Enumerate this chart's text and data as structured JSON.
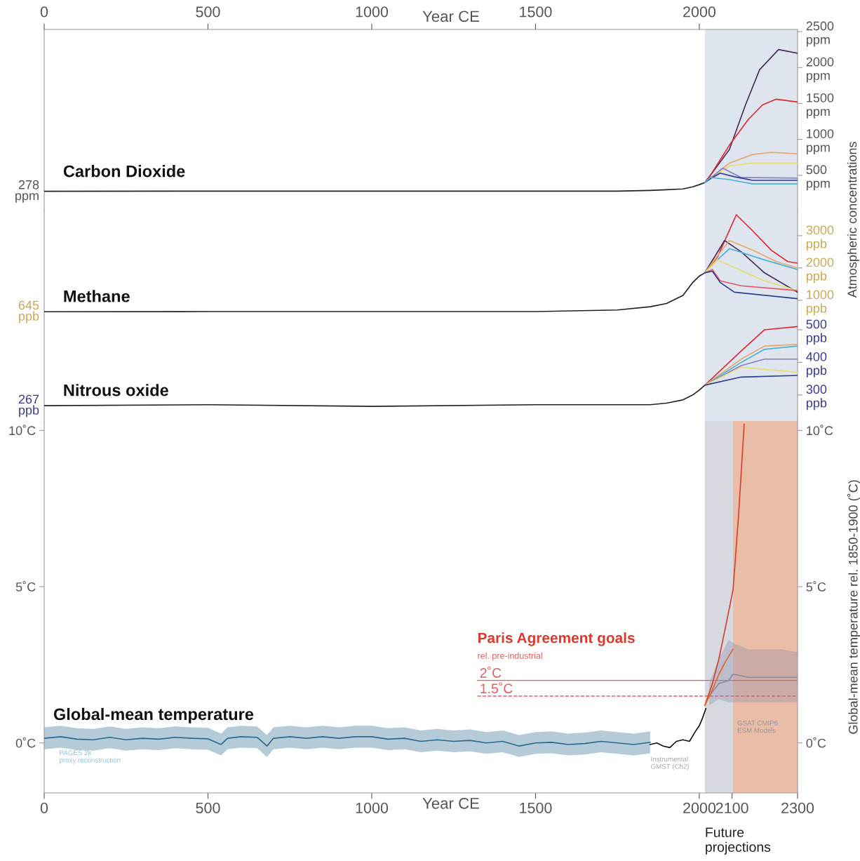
{
  "chart_data": [
    {
      "type": "line",
      "title": "Carbon Dioxide",
      "xlim": [
        0,
        2300
      ],
      "x2lim": [
        0,
        2300
      ],
      "x2ticks": [
        0,
        500,
        1000,
        1500,
        2000
      ],
      "x2label": "Year CE",
      "tick_labels": "y",
      "y2lim": [
        10,
        2530
      ],
      "y2label": "Atmospheric concentrations",
      "y2ticks": [
        {
          "value": 500,
          "label": "500\nppm"
        },
        {
          "value": 1000,
          "label": "1000\nppm"
        },
        {
          "value": 1500,
          "label": "1500\nppm"
        },
        {
          "value": 2000,
          "label": "2000\nppm"
        },
        {
          "value": 2500,
          "label": "2500\nppm"
        }
      ],
      "annotations": [
        "278\nppm"
      ],
      "bands": [
        {
          "axis": "x",
          "from": 2017,
          "to": 2300,
          "color": "#dfe5ef"
        }
      ],
      "series": [
        {
          "axis": "y2",
          "color": "#222222",
          "x": [
            0,
            500,
            1000,
            1500,
            1750,
            1850,
            1900,
            1950,
            1980,
            2000,
            2017
          ],
          "values": [
            278,
            280,
            280,
            280,
            280,
            290,
            300,
            310,
            340,
            370,
            400
          ]
        },
        {
          "axis": "y2",
          "color": "#4a2f5b",
          "x": [
            2017,
            2034,
            2092,
            2141,
            2184,
            2242,
            2300
          ],
          "values": [
            400,
            500,
            860,
            1480,
            1970,
            2250,
            2200
          ]
        },
        {
          "axis": "y2",
          "color": "#e0282e",
          "x": [
            2017,
            2034,
            2092,
            2150,
            2193,
            2235,
            2300
          ],
          "values": [
            400,
            500,
            920,
            1280,
            1480,
            1560,
            1520
          ]
        },
        {
          "axis": "y2",
          "color": "#e8a870",
          "x": [
            2017,
            2050,
            2092,
            2163,
            2220,
            2300
          ],
          "values": [
            400,
            520,
            670,
            790,
            820,
            800
          ]
        },
        {
          "axis": "y2",
          "color": "#e5de72",
          "x": [
            2017,
            2050,
            2092,
            2163,
            2300
          ],
          "values": [
            400,
            510,
            630,
            670,
            670
          ]
        },
        {
          "axis": "y2",
          "color": "#8a7fc4",
          "x": [
            2017,
            2040,
            2071,
            2128,
            2300
          ],
          "values": [
            400,
            480,
            600,
            470,
            460
          ]
        },
        {
          "axis": "y2",
          "color": "#2c3e8c",
          "x": [
            2017,
            2040,
            2064,
            2107,
            2163,
            2300
          ],
          "values": [
            400,
            470,
            530,
            480,
            430,
            430
          ]
        },
        {
          "axis": "y2",
          "color": "#4ab3d6",
          "x": [
            2017,
            2034,
            2092,
            2163,
            2300
          ],
          "values": [
            400,
            470,
            440,
            380,
            380
          ]
        }
      ]
    },
    {
      "type": "line",
      "title": "Methane",
      "xlim": [
        0,
        2300
      ],
      "tick_labels": "y",
      "y2lim": [
        520,
        3780
      ],
      "y2ticks": [
        {
          "value": 1000,
          "label": "1000\nppb"
        },
        {
          "value": 2000,
          "label": "2000\nppb"
        },
        {
          "value": 3000,
          "label": "3000\nppb"
        }
      ],
      "annotations": [
        "645\nppb"
      ],
      "bands": [
        {
          "axis": "x",
          "from": 2017,
          "to": 2300,
          "color": "#dfe5ef"
        }
      ],
      "series": [
        {
          "axis": "y2",
          "color": "#222222",
          "x": [
            0,
            500,
            1000,
            1500,
            1750,
            1850,
            1900,
            1950,
            1980,
            2000,
            2017
          ],
          "values": [
            645,
            650,
            650,
            650,
            700,
            800,
            900,
            1150,
            1550,
            1750,
            1850
          ]
        },
        {
          "axis": "y2",
          "color": "#e0282e",
          "x": [
            2017,
            2056,
            2113,
            2163,
            2220,
            2270,
            2300
          ],
          "values": [
            1850,
            2350,
            3650,
            3150,
            2550,
            2200,
            2150
          ]
        },
        {
          "axis": "y2",
          "color": "#4a2f5b",
          "x": [
            2017,
            2050,
            2077,
            2128,
            2199,
            2300
          ],
          "values": [
            1850,
            2400,
            2850,
            2500,
            1850,
            1250
          ]
        },
        {
          "axis": "y2",
          "color": "#e8a870",
          "x": [
            2017,
            2050,
            2092,
            2163,
            2235,
            2300
          ],
          "values": [
            1850,
            2300,
            2850,
            2550,
            2200,
            2000
          ]
        },
        {
          "axis": "y2",
          "color": "#4ab3d6",
          "x": [
            2017,
            2050,
            2092,
            2199,
            2300
          ],
          "values": [
            1850,
            2200,
            2600,
            2250,
            1950
          ]
        },
        {
          "axis": "y2",
          "color": "#e5de72",
          "x": [
            2017,
            2056,
            2199,
            2300
          ],
          "values": [
            1850,
            2250,
            1600,
            1300
          ]
        },
        {
          "axis": "y2",
          "color": "#e05560",
          "x": [
            2017,
            2040,
            2064,
            2128,
            2300
          ],
          "values": [
            1850,
            1950,
            1600,
            1450,
            1300
          ]
        },
        {
          "axis": "y2",
          "color": "#2c3e8c",
          "x": [
            2017,
            2040,
            2064,
            2107,
            2300
          ],
          "values": [
            1850,
            1900,
            1550,
            1250,
            1050
          ]
        }
      ]
    },
    {
      "type": "line",
      "title": "Nitrous oxide",
      "xlim": [
        0,
        2300
      ],
      "tick_labels": "y",
      "y2lim": [
        220,
        543
      ],
      "y2ticks": [
        {
          "value": 300,
          "label": "300\nppb"
        },
        {
          "value": 400,
          "label": "400\nppb"
        },
        {
          "value": 500,
          "label": "500\nppb"
        }
      ],
      "annotations": [
        "267\nppb"
      ],
      "bands": [
        {
          "axis": "x",
          "from": 2017,
          "to": 2300,
          "color": "#dfe5ef"
        }
      ],
      "series": [
        {
          "axis": "y2",
          "color": "#222222",
          "x": [
            0,
            500,
            1000,
            1500,
            1750,
            1850,
            1900,
            1950,
            1980,
            2000,
            2017
          ],
          "values": [
            267,
            270,
            265,
            270,
            270,
            270,
            275,
            285,
            300,
            315,
            330
          ]
        },
        {
          "axis": "y2",
          "color": "#e0282e",
          "x": [
            2017,
            2128,
            2199,
            2300
          ],
          "values": [
            330,
            435,
            500,
            510
          ]
        },
        {
          "axis": "y2",
          "color": "#e8a870",
          "x": [
            2017,
            2128,
            2199,
            2300
          ],
          "values": [
            330,
            410,
            450,
            455
          ]
        },
        {
          "axis": "y2",
          "color": "#4ab3d6",
          "x": [
            2017,
            2128,
            2199,
            2300
          ],
          "values": [
            330,
            400,
            440,
            450
          ]
        },
        {
          "axis": "y2",
          "color": "#8a7fc4",
          "x": [
            2017,
            2128,
            2199,
            2300
          ],
          "values": [
            330,
            390,
            410,
            410
          ]
        },
        {
          "axis": "y2",
          "color": "#e5de72",
          "x": [
            2017,
            2128,
            2300
          ],
          "values": [
            330,
            385,
            370
          ]
        },
        {
          "axis": "y2",
          "color": "#2c3e8c",
          "x": [
            2017,
            2128,
            2300
          ],
          "values": [
            330,
            355,
            360
          ]
        }
      ]
    },
    {
      "type": "line",
      "title": "Global-mean temperature",
      "xlabel": "Year CE",
      "y2label": "Global-mean temperature rel. 1850-1900 (˚C)",
      "xlim": [
        0,
        2300
      ],
      "xticks": [
        0,
        500,
        1000,
        1500,
        2000,
        2100,
        2300
      ],
      "ylim": [
        -1.6,
        10.3
      ],
      "yticks": [
        {
          "value": 0,
          "label": "0˚C"
        },
        {
          "value": 5,
          "label": "5˚C"
        },
        {
          "value": 10,
          "label": "10˚C"
        }
      ],
      "y2lim": [
        -1.6,
        10.3
      ],
      "y2ticks": [
        {
          "value": 0,
          "label": "0˚C"
        },
        {
          "value": 5,
          "label": "5˚C"
        },
        {
          "value": 10,
          "label": "10˚C"
        }
      ],
      "bands": [
        {
          "axis": "x",
          "from": 2017,
          "to": 2103,
          "color": "#d6d9e0",
          "label": "Future\nprojections"
        },
        {
          "axis": "x",
          "from": 2103,
          "to": 2300,
          "color": "#eabda8"
        }
      ],
      "ref_lines": [
        {
          "axis": "y",
          "value": 2,
          "label": "2˚C",
          "color": "#e06060",
          "line_style": "solid"
        },
        {
          "axis": "y",
          "value": 1.5,
          "label": "1.5˚C",
          "color": "#e06060",
          "line_style": "dashed"
        }
      ],
      "annotations": [
        "Paris Agreement goals",
        "rel. pre-industrial",
        "PAGES 2k\nproxy reconstruction",
        "Instrumental\nGMST (Ch2)",
        "GSAT CMIP6\nESM Models"
      ],
      "series": [
        {
          "color": "#2b6a8e",
          "x": [
            0,
            50,
            100,
            150,
            200,
            250,
            300,
            350,
            400,
            450,
            500,
            540,
            560,
            600,
            650,
            680,
            700,
            750,
            800,
            850,
            900,
            950,
            1000,
            1050,
            1100,
            1150,
            1200,
            1250,
            1300,
            1350,
            1400,
            1450,
            1500,
            1550,
            1600,
            1650,
            1700,
            1750,
            1800,
            1850
          ],
          "values": [
            0.15,
            0.2,
            0.12,
            0.1,
            0.18,
            0.1,
            0.15,
            0.12,
            0.18,
            0.15,
            0.13,
            -0.05,
            0.15,
            0.2,
            0.18,
            -0.1,
            0.15,
            0.2,
            0.15,
            0.2,
            0.15,
            0.2,
            0.2,
            0.12,
            0.15,
            0.05,
            0.1,
            0.05,
            0.08,
            0.0,
            0.05,
            -0.1,
            0.0,
            0.02,
            -0.05,
            -0.02,
            0.05,
            0.0,
            -0.05,
            0.02
          ],
          "lower": [
            -0.2,
            -0.15,
            -0.23,
            -0.25,
            -0.17,
            -0.25,
            -0.2,
            -0.23,
            -0.17,
            -0.2,
            -0.22,
            -0.4,
            -0.2,
            -0.15,
            -0.17,
            -0.45,
            -0.2,
            -0.15,
            -0.2,
            -0.15,
            -0.2,
            -0.15,
            -0.15,
            -0.23,
            -0.2,
            -0.3,
            -0.25,
            -0.3,
            -0.27,
            -0.35,
            -0.3,
            -0.45,
            -0.35,
            -0.33,
            -0.4,
            -0.37,
            -0.3,
            -0.35,
            -0.4,
            -0.33
          ],
          "upper": [
            0.5,
            0.55,
            0.47,
            0.45,
            0.53,
            0.45,
            0.5,
            0.47,
            0.53,
            0.5,
            0.48,
            0.3,
            0.5,
            0.55,
            0.53,
            0.25,
            0.5,
            0.55,
            0.5,
            0.55,
            0.5,
            0.55,
            0.55,
            0.47,
            0.5,
            0.4,
            0.45,
            0.4,
            0.43,
            0.35,
            0.4,
            0.25,
            0.35,
            0.37,
            0.3,
            0.33,
            0.4,
            0.35,
            0.3,
            0.37
          ]
        },
        {
          "color": "#111111",
          "x": [
            1850,
            1870,
            1890,
            1910,
            1930,
            1950,
            1970,
            1990,
            2000,
            2010,
            2020
          ],
          "values": [
            -0.05,
            0.0,
            -0.1,
            -0.15,
            0.05,
            0.1,
            0.05,
            0.4,
            0.55,
            0.8,
            1.1
          ]
        },
        {
          "color": "#8f8aa3",
          "x": [
            2030,
            2060,
            2090,
            2103,
            2150,
            2200,
            2250,
            2300
          ],
          "values": [
            1.5,
            1.9,
            2.0,
            2.2,
            2.1,
            2.1,
            2.1,
            2.1
          ],
          "lower": [
            1.2,
            1.4,
            1.3,
            1.3,
            1.3,
            1.3,
            1.3,
            1.3
          ],
          "upper": [
            1.9,
            2.7,
            3.3,
            3.2,
            3.0,
            3.0,
            3.0,
            2.9
          ]
        },
        {
          "color": "#d9402b",
          "x": [
            2017,
            2040,
            2060,
            2080,
            2103,
            2120,
            2137
          ],
          "values": [
            1.2,
            1.9,
            2.7,
            3.7,
            4.9,
            7.3,
            10.2
          ]
        },
        {
          "color": "#e0662f",
          "x": [
            2017,
            2040,
            2060,
            2080,
            2103
          ],
          "values": [
            1.2,
            1.7,
            2.2,
            2.6,
            3.0
          ]
        }
      ]
    }
  ]
}
